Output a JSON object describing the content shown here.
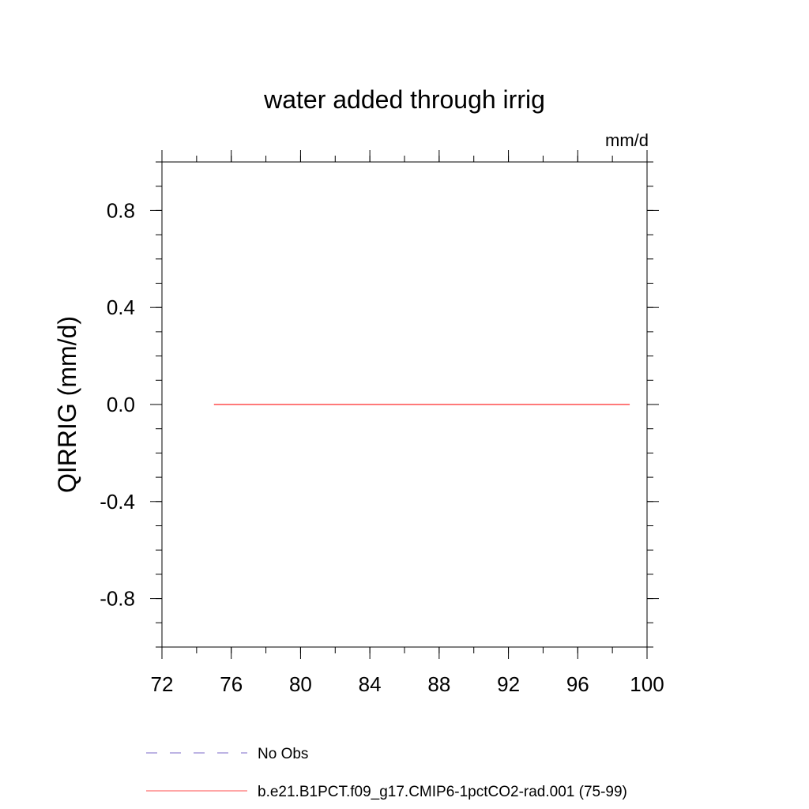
{
  "chart_data": {
    "type": "line",
    "title": "water added through irrig",
    "units_label": "mm/d",
    "ylabel": "QIRRIG  (mm/d)",
    "xlabel": "",
    "xlim": [
      72,
      100
    ],
    "ylim": [
      -1.0,
      1.0
    ],
    "x_ticks": [
      72,
      76,
      80,
      84,
      88,
      92,
      96,
      100
    ],
    "x_tick_labels": [
      "72",
      "76",
      "80",
      "84",
      "88",
      "92",
      "96",
      "100"
    ],
    "y_ticks": [
      -0.8,
      -0.4,
      0.0,
      0.4,
      0.8
    ],
    "y_tick_labels": [
      "-0.8",
      "-0.4",
      "0.0",
      "0.4",
      "0.8"
    ],
    "x_minor_step": 2,
    "y_minor_step": 0.1,
    "grid": false,
    "legend_position": "bottom",
    "series": [
      {
        "name": "b.e21.B1PCT.f09_g17.CMIP6-1pctCO2-rad.001 (75-99)",
        "color": "#ff4d4d",
        "style": "solid",
        "x": [
          75,
          99
        ],
        "y": [
          0.0,
          0.0
        ]
      }
    ],
    "legend": [
      {
        "label": "No Obs",
        "color": "#7b68c8",
        "style": "dashed"
      },
      {
        "label": "b.e21.B1PCT.f09_g17.CMIP6-1pctCO2-rad.001 (75-99)",
        "color": "#ff4d4d",
        "style": "solid"
      }
    ]
  }
}
